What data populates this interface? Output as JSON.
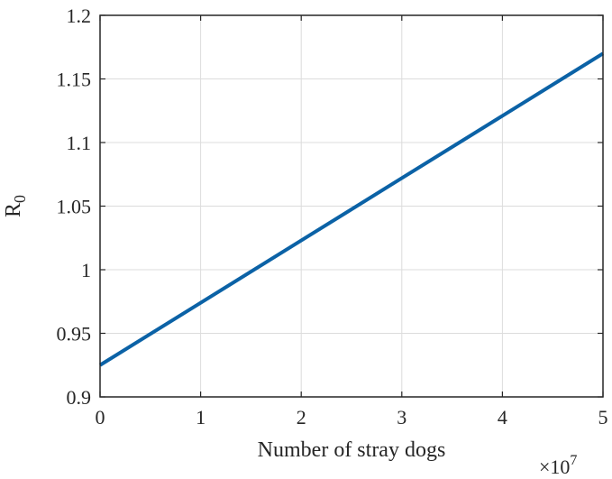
{
  "chart_data": {
    "type": "line",
    "xlabel": "Number of stray dogs",
    "ylabel": "R",
    "ylabel_subscript": "0",
    "x_multiplier_base": "×10",
    "x_multiplier_exponent": "7",
    "xlim": [
      0,
      5
    ],
    "ylim": [
      0.9,
      1.2
    ],
    "xticks": [
      0,
      1,
      2,
      3,
      4,
      5
    ],
    "xtick_labels": [
      "0",
      "1",
      "2",
      "3",
      "4",
      "5"
    ],
    "yticks": [
      0.9,
      0.95,
      1.0,
      1.05,
      1.1,
      1.15,
      1.2
    ],
    "ytick_labels": [
      "0.9",
      "0.95",
      "1",
      "1.05",
      "1.1",
      "1.15",
      "1.2"
    ],
    "grid": true,
    "series": [
      {
        "color": "#0b62a6",
        "x": [
          0,
          1,
          2,
          3,
          4,
          5
        ],
        "y": [
          0.925,
          0.974,
          1.023,
          1.072,
          1.121,
          1.17
        ]
      }
    ]
  }
}
